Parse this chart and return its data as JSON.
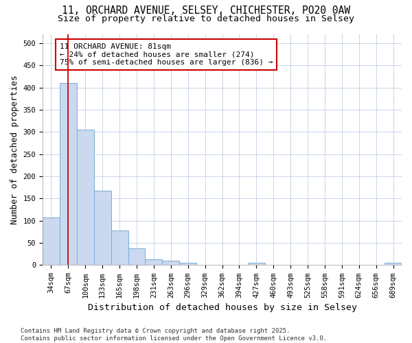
{
  "title1": "11, ORCHARD AVENUE, SELSEY, CHICHESTER, PO20 0AW",
  "title2": "Size of property relative to detached houses in Selsey",
  "xlabel": "Distribution of detached houses by size in Selsey",
  "ylabel": "Number of detached properties",
  "categories": [
    "34sqm",
    "67sqm",
    "100sqm",
    "133sqm",
    "165sqm",
    "198sqm",
    "231sqm",
    "263sqm",
    "296sqm",
    "329sqm",
    "362sqm",
    "394sqm",
    "427sqm",
    "460sqm",
    "493sqm",
    "525sqm",
    "558sqm",
    "591sqm",
    "624sqm",
    "656sqm",
    "689sqm"
  ],
  "values": [
    107,
    410,
    305,
    167,
    78,
    38,
    13,
    10,
    6,
    0,
    0,
    0,
    5,
    0,
    0,
    0,
    0,
    0,
    0,
    0,
    5
  ],
  "bar_color": "#cad9f0",
  "bar_edge_color": "#7baad4",
  "vline_x": 1,
  "vline_color": "#cc0000",
  "annotation_text": "11 ORCHARD AVENUE: 81sqm\n← 24% of detached houses are smaller (274)\n75% of semi-detached houses are larger (836) →",
  "annotation_box_color": "#ffffff",
  "annotation_box_edge": "#cc0000",
  "ylim": [
    0,
    520
  ],
  "yticks": [
    0,
    50,
    100,
    150,
    200,
    250,
    300,
    350,
    400,
    450,
    500
  ],
  "footer_text": "Contains HM Land Registry data © Crown copyright and database right 2025.\nContains public sector information licensed under the Open Government Licence v3.0.",
  "bg_color": "#ffffff",
  "plot_bg_color": "#ffffff",
  "grid_color": "#c8d4e8",
  "title_fontsize": 10.5,
  "subtitle_fontsize": 9.5,
  "axis_label_fontsize": 9,
  "tick_fontsize": 7.5,
  "annotation_fontsize": 8,
  "footer_fontsize": 6.5
}
